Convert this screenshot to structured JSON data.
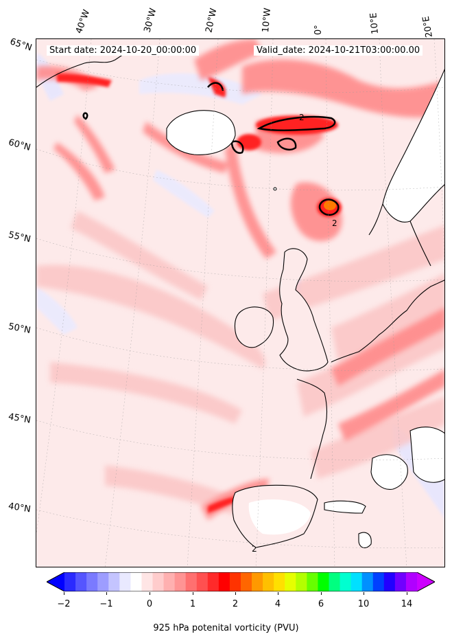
{
  "header": {
    "start_date": "Start date: 2024-10-20_00:00:00",
    "valid_date": "Valid_date: 2024-10-21T03:00:00.00"
  },
  "map": {
    "projection": "conic",
    "extent_lon": [
      -45,
      20
    ],
    "extent_lat": [
      37,
      66
    ],
    "background_color": "#fdeaea",
    "land_white_color": "#ffffff",
    "contour_level_label": "2",
    "lon_labels": [
      "40°W",
      "30°W",
      "20°W",
      "10°W",
      "0°",
      "10°E",
      "20°E"
    ],
    "lat_labels": [
      "65°N",
      "60°N",
      "55°N",
      "50°N",
      "45°N",
      "40°N"
    ]
  },
  "colorbar": {
    "label": "925 hPa potenital vorticity (PVU)",
    "ticks": [
      "−2",
      "−1",
      "0",
      "1",
      "2",
      "4",
      "6",
      "10",
      "14"
    ],
    "colors": [
      "#0000ff",
      "#2a2aff",
      "#5555ff",
      "#7a7aff",
      "#9d9dff",
      "#c4c4ff",
      "#e9e9ff",
      "#ffffff",
      "#ffe5e5",
      "#ffcccc",
      "#ffb0b0",
      "#ff9494",
      "#ff7070",
      "#ff5050",
      "#ff2a2a",
      "#ff0000",
      "#ff3300",
      "#ff6600",
      "#ff9900",
      "#ffc000",
      "#ffe000",
      "#e6ff00",
      "#b3ff00",
      "#66ff00",
      "#00ff00",
      "#00ff80",
      "#00ffd0",
      "#00e0ff",
      "#0090ff",
      "#0040ff",
      "#2200ff",
      "#7000ff",
      "#b000ff",
      "#cc00ff"
    ]
  }
}
